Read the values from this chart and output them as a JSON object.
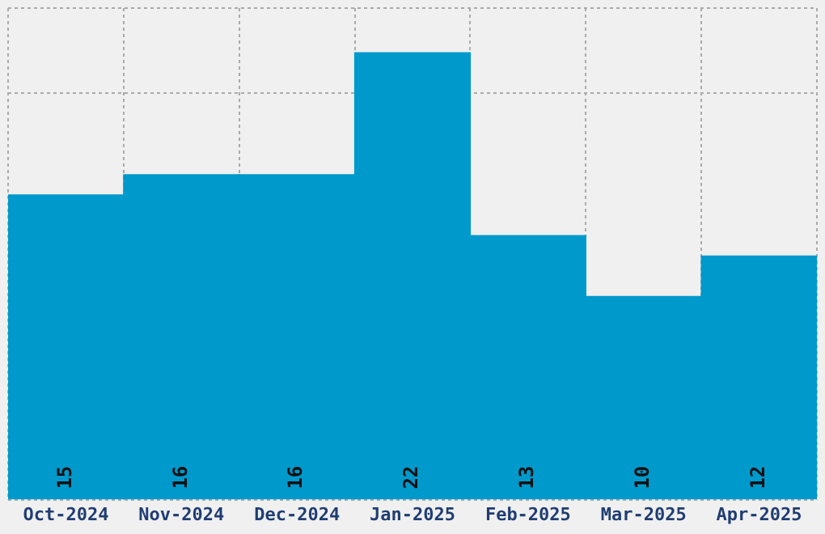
{
  "chart_data": {
    "type": "bar",
    "categories": [
      "Oct-2024",
      "Nov-2024",
      "Dec-2024",
      "Jan-2025",
      "Feb-2025",
      "Mar-2025",
      "Apr-2025"
    ],
    "values": [
      15,
      16,
      16,
      22,
      13,
      10,
      12
    ],
    "color": "#0099cc",
    "ylim": [
      0,
      24.2
    ],
    "tick_labels": "x",
    "grid": true,
    "data_labels": true
  }
}
